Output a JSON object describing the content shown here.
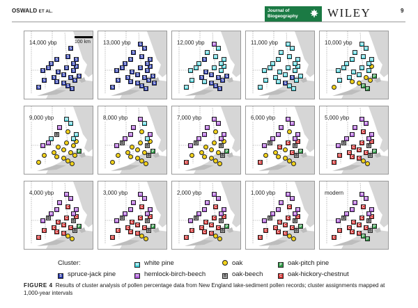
{
  "header": {
    "author": "OSWALD",
    "author_suffix": "ET AL.",
    "journal_line1": "Journal of",
    "journal_line2": "Biogeography",
    "publisher": "WILEY",
    "page_number": "9"
  },
  "scalebar_label": "100 km",
  "colors": {
    "spruce_jack_pine": "#2233aa",
    "white_pine": "#33cbd6",
    "hemlock_birch_beech": "#a64fd6",
    "oak": "#f2d21a",
    "oak_beech": "#a8a8a8",
    "oak_pitch_pine": "#2e9a45",
    "oak_hickory_chestnut": "#d62e2e"
  },
  "panels": [
    {
      "label": "14,000 ybp"
    },
    {
      "label": "13,000 ybp"
    },
    {
      "label": "12,000 ybp"
    },
    {
      "label": "11,000 ybp"
    },
    {
      "label": "10,000 ybp"
    },
    {
      "label": "9,000 ybp"
    },
    {
      "label": "8,000 ybp"
    },
    {
      "label": "7,000 ybp"
    },
    {
      "label": "6,000 ybp"
    },
    {
      "label": "5,000 ybp"
    },
    {
      "label": "4,000 ybp"
    },
    {
      "label": "3,000 ybp"
    },
    {
      "label": "2,000 ybp"
    },
    {
      "label": "1,000 ybp"
    },
    {
      "label": "modern"
    }
  ],
  "legend": {
    "title": "Cluster:",
    "items": [
      {
        "code": "S",
        "label": "spruce-jack pine"
      },
      {
        "code": "W",
        "label": "white pine"
      },
      {
        "code": "H",
        "label": "hemlock-birch-beech"
      },
      {
        "code": "O",
        "label": "oak"
      },
      {
        "code": "B",
        "label": "oak-beech"
      },
      {
        "code": "P",
        "label": "oak-pitch pine"
      },
      {
        "code": "C",
        "label": "oak-hickory-chestnut"
      }
    ]
  },
  "caption": {
    "figure_label": "FIGURE 4",
    "text": "Results of cluster analysis of pollen percentage data from New England lake-sediment pollen records; cluster assignments mapped at 1,000-year intervals"
  }
}
